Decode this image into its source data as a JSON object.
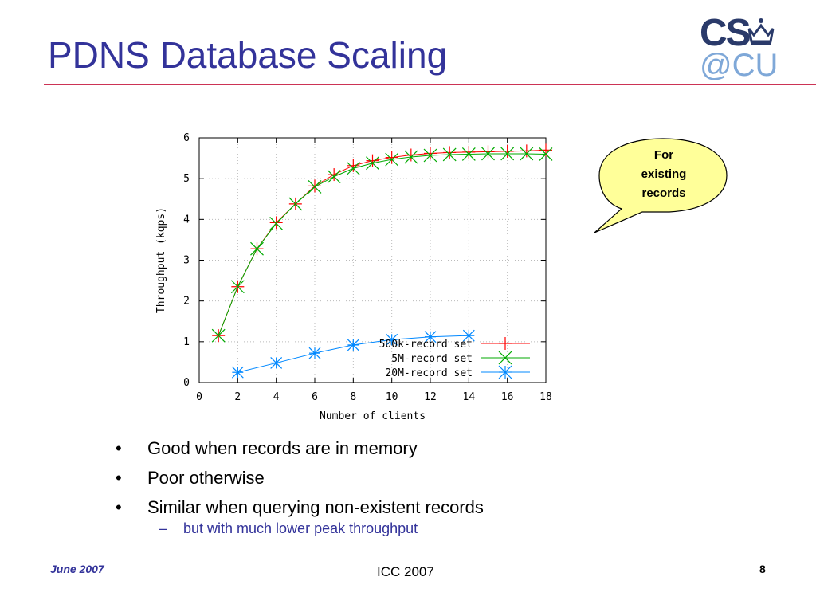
{
  "slide": {
    "title": "PDNS Database Scaling",
    "logo_text_top": "CS",
    "logo_text_bottom": "@CU"
  },
  "callout": {
    "lines": [
      "For",
      "existing",
      "records"
    ],
    "fill": "#ffff99"
  },
  "bullets": [
    "Good when records are in memory",
    "Poor otherwise",
    "Similar when querying non-existent records"
  ],
  "sub_bullet": "but with much lower peak throughput",
  "footer": {
    "date": "June 2007",
    "center": "ICC 2007",
    "page": "8"
  },
  "colors": {
    "title": "#33339a",
    "rule": "#cc3355",
    "series_500k": "#ff0000",
    "series_5m": "#00aa00",
    "series_20m": "#0088ff"
  },
  "chart_data": {
    "type": "line",
    "xlabel": "Number of clients",
    "ylabel": "Throughput (kqps)",
    "xlim": [
      0,
      18
    ],
    "ylim": [
      0,
      6
    ],
    "xticks": [
      0,
      2,
      4,
      6,
      8,
      10,
      12,
      14,
      16,
      18
    ],
    "yticks": [
      0,
      1,
      2,
      3,
      4,
      5,
      6
    ],
    "legend_position": "bottom-right",
    "series": [
      {
        "name": "500k-record set",
        "marker": "plus",
        "color": "#ff0000",
        "x": [
          1,
          2,
          3,
          4,
          5,
          6,
          7,
          8,
          9,
          10,
          11,
          12,
          13,
          14,
          15,
          16,
          17,
          18
        ],
        "y": [
          1.15,
          2.35,
          3.28,
          3.92,
          4.38,
          4.82,
          5.1,
          5.32,
          5.44,
          5.52,
          5.58,
          5.62,
          5.64,
          5.65,
          5.66,
          5.67,
          5.68,
          5.7
        ]
      },
      {
        "name": "5M-record set",
        "marker": "x",
        "color": "#00aa00",
        "x": [
          1,
          2,
          3,
          4,
          5,
          6,
          7,
          8,
          9,
          10,
          11,
          12,
          13,
          14,
          15,
          16,
          17,
          18
        ],
        "y": [
          1.15,
          2.35,
          3.28,
          3.9,
          4.38,
          4.8,
          5.05,
          5.25,
          5.38,
          5.47,
          5.53,
          5.57,
          5.59,
          5.6,
          5.61,
          5.61,
          5.61,
          5.6
        ]
      },
      {
        "name": "20M-record set",
        "marker": "star",
        "color": "#0088ff",
        "x": [
          2,
          4,
          6,
          8,
          10,
          12,
          14
        ],
        "y": [
          0.25,
          0.48,
          0.72,
          0.92,
          1.05,
          1.12,
          1.15
        ]
      }
    ]
  }
}
